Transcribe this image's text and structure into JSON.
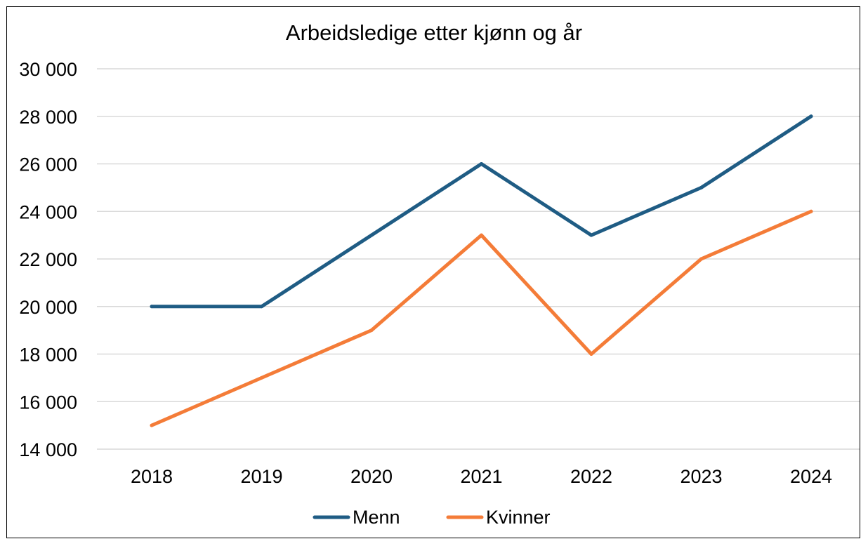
{
  "chart_data": {
    "type": "line",
    "title": "Arbeidsledige etter kjønn og år",
    "xlabel": "",
    "ylabel": "",
    "categories": [
      "2018",
      "2019",
      "2020",
      "2021",
      "2022",
      "2023",
      "2024"
    ],
    "ylim": [
      14000,
      30000
    ],
    "yticks": [
      14000,
      16000,
      18000,
      20000,
      22000,
      24000,
      26000,
      28000,
      30000
    ],
    "ytick_labels": [
      "14 000",
      "16 000",
      "18 000",
      "20 000",
      "22 000",
      "24 000",
      "26 000",
      "28 000",
      "30 000"
    ],
    "grid": true,
    "legend_position": "bottom",
    "series": [
      {
        "name": "Menn",
        "color": "#1F5C84",
        "values": [
          20000,
          20000,
          23000,
          26000,
          23000,
          25000,
          28000
        ]
      },
      {
        "name": "Kvinner",
        "color": "#F47C38",
        "values": [
          15000,
          17000,
          19000,
          23000,
          18000,
          22000,
          24000
        ]
      }
    ]
  }
}
